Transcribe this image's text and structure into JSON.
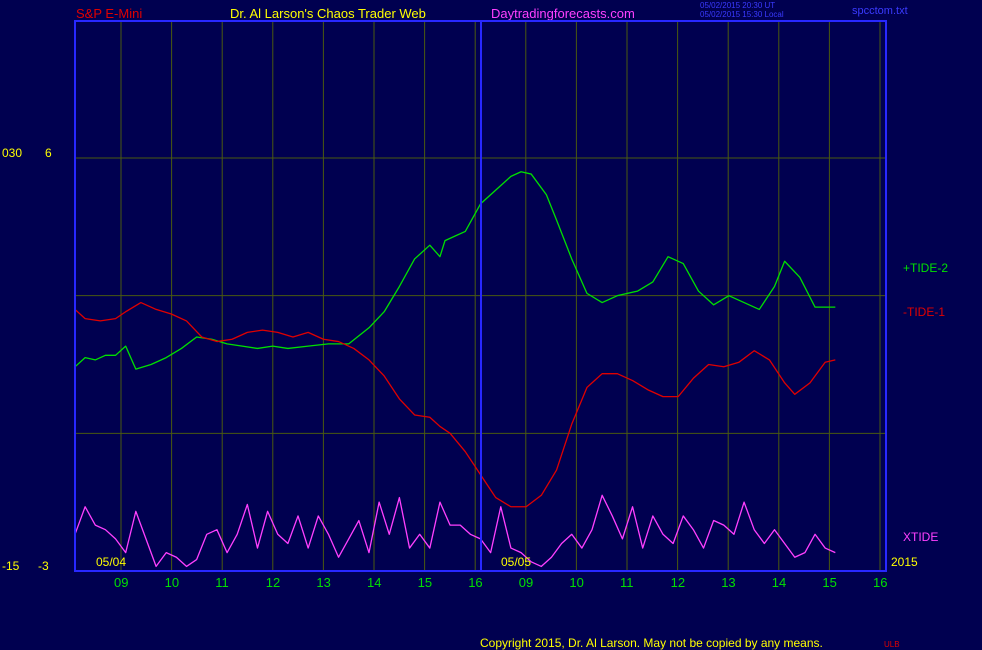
{
  "header": {
    "instrument": "S&P E-Mini",
    "author": "Dr. Al Larson's Chaos Trader Web",
    "site": "Daytradingforecasts.com",
    "timestamp_line1": "05/02/2015 20:30 UT",
    "timestamp_line2": "05/02/2015 15:30 Local",
    "file": "spcctom.txt"
  },
  "footer": {
    "copyright": "Copyright 2015, Dr. Al Larson. May not be copied by any means.",
    "tag": "ULB"
  },
  "colors": {
    "background": "#000050",
    "frame": "#2828ff",
    "grid": "#4a5a10",
    "tide_plus": "#00e000",
    "tide_minus": "#e00000",
    "xtide": "#ff40ff",
    "labels": "#ffff00"
  },
  "chart_data": {
    "type": "line",
    "y_axis_labels": {
      "left_top": "030",
      "right_top": "6",
      "left_bottom": "-15",
      "right_bottom": "-3"
    },
    "date_labels": {
      "day1": "05/04",
      "day2": "05/05",
      "year": "2015"
    },
    "x_ticks": [
      "09",
      "10",
      "11",
      "12",
      "13",
      "14",
      "15",
      "16",
      "09",
      "10",
      "11",
      "12",
      "13",
      "14",
      "15",
      "16"
    ],
    "x_range": [
      0,
      16
    ],
    "ylim": [
      -3,
      6
    ],
    "series": [
      {
        "name": "+TIDE-2",
        "color": "#00e000",
        "points": [
          [
            0,
            1.45
          ],
          [
            0.2,
            1.65
          ],
          [
            0.4,
            1.6
          ],
          [
            0.6,
            1.7
          ],
          [
            0.8,
            1.7
          ],
          [
            1.0,
            1.9
          ],
          [
            1.2,
            1.4
          ],
          [
            1.5,
            1.5
          ],
          [
            1.8,
            1.65
          ],
          [
            2.1,
            1.85
          ],
          [
            2.4,
            2.1
          ],
          [
            2.7,
            2.05
          ],
          [
            3.0,
            1.95
          ],
          [
            3.3,
            1.9
          ],
          [
            3.6,
            1.85
          ],
          [
            3.9,
            1.9
          ],
          [
            4.2,
            1.85
          ],
          [
            4.6,
            1.9
          ],
          [
            5.0,
            1.95
          ],
          [
            5.4,
            1.95
          ],
          [
            5.8,
            2.3
          ],
          [
            6.1,
            2.65
          ],
          [
            6.4,
            3.2
          ],
          [
            6.7,
            3.8
          ],
          [
            7.0,
            4.1
          ],
          [
            7.2,
            3.85
          ],
          [
            7.3,
            4.2
          ],
          [
            7.5,
            4.3
          ],
          [
            7.7,
            4.4
          ],
          [
            8.0,
            5.0
          ],
          [
            8.3,
            5.3
          ],
          [
            8.6,
            5.6
          ],
          [
            8.8,
            5.7
          ],
          [
            9.0,
            5.65
          ],
          [
            9.3,
            5.2
          ],
          [
            9.5,
            4.65
          ],
          [
            9.8,
            3.8
          ],
          [
            10.1,
            3.05
          ],
          [
            10.4,
            2.85
          ],
          [
            10.7,
            3.0
          ],
          [
            11.1,
            3.1
          ],
          [
            11.4,
            3.3
          ],
          [
            11.7,
            3.85
          ],
          [
            12.0,
            3.7
          ],
          [
            12.3,
            3.1
          ],
          [
            12.6,
            2.8
          ],
          [
            12.9,
            3.0
          ],
          [
            13.2,
            2.85
          ],
          [
            13.5,
            2.7
          ],
          [
            13.8,
            3.2
          ],
          [
            14.0,
            3.75
          ],
          [
            14.3,
            3.4
          ],
          [
            14.6,
            2.75
          ],
          [
            14.9,
            2.75
          ],
          [
            15.0,
            2.75
          ]
        ]
      },
      {
        "name": "-TIDE-1",
        "color": "#e00000",
        "points": [
          [
            0,
            2.7
          ],
          [
            0.2,
            2.5
          ],
          [
            0.5,
            2.45
          ],
          [
            0.8,
            2.5
          ],
          [
            1.0,
            2.65
          ],
          [
            1.3,
            2.85
          ],
          [
            1.6,
            2.7
          ],
          [
            1.9,
            2.6
          ],
          [
            2.2,
            2.45
          ],
          [
            2.5,
            2.1
          ],
          [
            2.8,
            2.0
          ],
          [
            3.1,
            2.05
          ],
          [
            3.4,
            2.2
          ],
          [
            3.7,
            2.25
          ],
          [
            4.0,
            2.2
          ],
          [
            4.3,
            2.1
          ],
          [
            4.6,
            2.2
          ],
          [
            4.9,
            2.05
          ],
          [
            5.2,
            2.0
          ],
          [
            5.5,
            1.85
          ],
          [
            5.8,
            1.6
          ],
          [
            6.1,
            1.25
          ],
          [
            6.4,
            0.75
          ],
          [
            6.7,
            0.4
          ],
          [
            7.0,
            0.35
          ],
          [
            7.2,
            0.15
          ],
          [
            7.4,
            0.0
          ],
          [
            7.7,
            -0.4
          ],
          [
            8.0,
            -0.9
          ],
          [
            8.3,
            -1.4
          ],
          [
            8.6,
            -1.6
          ],
          [
            8.9,
            -1.6
          ],
          [
            9.2,
            -1.35
          ],
          [
            9.5,
            -0.8
          ],
          [
            9.8,
            0.2
          ],
          [
            10.1,
            1.0
          ],
          [
            10.4,
            1.3
          ],
          [
            10.7,
            1.3
          ],
          [
            11.0,
            1.15
          ],
          [
            11.3,
            0.95
          ],
          [
            11.6,
            0.8
          ],
          [
            11.9,
            0.8
          ],
          [
            12.2,
            1.2
          ],
          [
            12.5,
            1.5
          ],
          [
            12.8,
            1.45
          ],
          [
            13.1,
            1.55
          ],
          [
            13.4,
            1.8
          ],
          [
            13.7,
            1.6
          ],
          [
            14.0,
            1.1
          ],
          [
            14.2,
            0.85
          ],
          [
            14.5,
            1.1
          ],
          [
            14.8,
            1.55
          ],
          [
            15.0,
            1.6
          ]
        ]
      },
      {
        "name": "XTIDE",
        "color": "#ff40ff",
        "points": [
          [
            0,
            -2.2
          ],
          [
            0.2,
            -1.6
          ],
          [
            0.4,
            -2.0
          ],
          [
            0.6,
            -2.1
          ],
          [
            0.8,
            -2.3
          ],
          [
            1.0,
            -2.6
          ],
          [
            1.2,
            -1.7
          ],
          [
            1.4,
            -2.3
          ],
          [
            1.6,
            -2.9
          ],
          [
            1.8,
            -2.6
          ],
          [
            2.0,
            -2.7
          ],
          [
            2.2,
            -2.9
          ],
          [
            2.4,
            -2.75
          ],
          [
            2.6,
            -2.2
          ],
          [
            2.8,
            -2.1
          ],
          [
            3.0,
            -2.6
          ],
          [
            3.2,
            -2.2
          ],
          [
            3.4,
            -1.55
          ],
          [
            3.6,
            -2.5
          ],
          [
            3.8,
            -1.7
          ],
          [
            4.0,
            -2.2
          ],
          [
            4.2,
            -2.4
          ],
          [
            4.4,
            -1.8
          ],
          [
            4.6,
            -2.5
          ],
          [
            4.8,
            -1.8
          ],
          [
            5.0,
            -2.2
          ],
          [
            5.2,
            -2.7
          ],
          [
            5.4,
            -2.3
          ],
          [
            5.6,
            -1.9
          ],
          [
            5.8,
            -2.6
          ],
          [
            6.0,
            -1.5
          ],
          [
            6.2,
            -2.2
          ],
          [
            6.4,
            -1.4
          ],
          [
            6.6,
            -2.5
          ],
          [
            6.8,
            -2.2
          ],
          [
            7.0,
            -2.5
          ],
          [
            7.2,
            -1.5
          ],
          [
            7.4,
            -2.0
          ],
          [
            7.6,
            -2.0
          ],
          [
            7.8,
            -2.2
          ],
          [
            8.0,
            -2.3
          ],
          [
            8.2,
            -2.6
          ],
          [
            8.4,
            -1.6
          ],
          [
            8.6,
            -2.5
          ],
          [
            8.8,
            -2.6
          ],
          [
            9.0,
            -2.8
          ],
          [
            9.2,
            -2.9
          ],
          [
            9.4,
            -2.7
          ],
          [
            9.6,
            -2.4
          ],
          [
            9.8,
            -2.2
          ],
          [
            10.0,
            -2.5
          ],
          [
            10.2,
            -2.1
          ],
          [
            10.4,
            -1.35
          ],
          [
            10.6,
            -1.8
          ],
          [
            10.8,
            -2.3
          ],
          [
            11.0,
            -1.6
          ],
          [
            11.2,
            -2.5
          ],
          [
            11.4,
            -1.8
          ],
          [
            11.6,
            -2.2
          ],
          [
            11.8,
            -2.4
          ],
          [
            12.0,
            -1.8
          ],
          [
            12.2,
            -2.1
          ],
          [
            12.4,
            -2.5
          ],
          [
            12.6,
            -1.9
          ],
          [
            12.8,
            -2.0
          ],
          [
            13.0,
            -2.2
          ],
          [
            13.2,
            -1.5
          ],
          [
            13.4,
            -2.1
          ],
          [
            13.6,
            -2.4
          ],
          [
            13.8,
            -2.1
          ],
          [
            14.0,
            -2.4
          ],
          [
            14.2,
            -2.7
          ],
          [
            14.4,
            -2.6
          ],
          [
            14.6,
            -2.2
          ],
          [
            14.8,
            -2.5
          ],
          [
            15.0,
            -2.6
          ]
        ]
      }
    ]
  }
}
